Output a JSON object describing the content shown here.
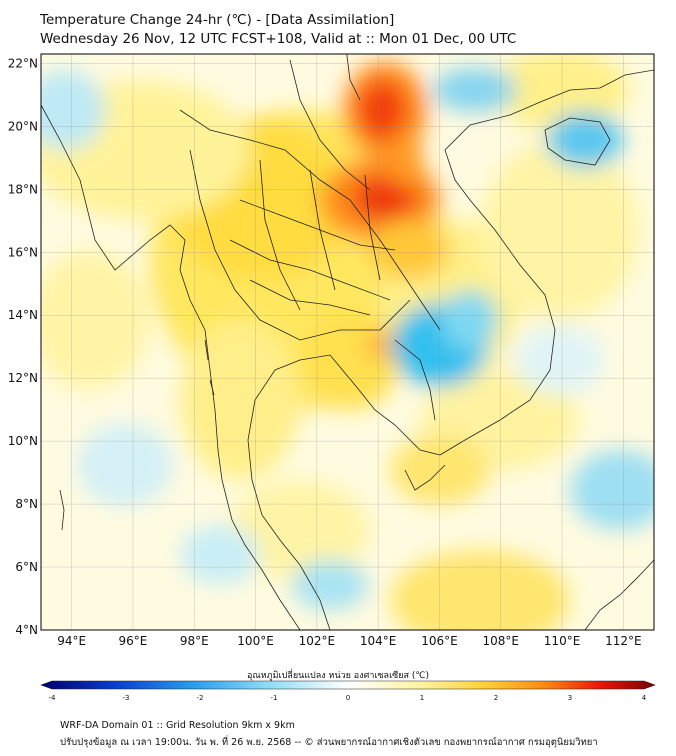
{
  "header": {
    "title_line1": "Temperature Change 24-hr (℃) - [Data Assimilation]",
    "title_line2": "Wednesday 26 Nov, 12 UTC FCST+108, Valid at :: Mon 01 Dec, 00 UTC"
  },
  "map": {
    "lat_labels": [
      "22°N",
      "20°N",
      "18°N",
      "16°N",
      "14°N",
      "12°N",
      "10°N",
      "8°N",
      "6°N",
      "4°N"
    ],
    "lon_labels": [
      "94°E",
      "96°E",
      "98°E",
      "100°E",
      "102°E",
      "104°E",
      "106°E",
      "108°E",
      "110°E",
      "112°E"
    ],
    "lat_values": [
      22,
      20,
      18,
      16,
      14,
      12,
      10,
      8,
      6,
      4
    ],
    "lon_values": [
      94,
      96,
      98,
      100,
      102,
      104,
      106,
      108,
      110,
      112
    ],
    "extent": {
      "lon_min": 93,
      "lon_max": 113,
      "lat_min": 4,
      "lat_max": 22.3
    }
  },
  "colorbar": {
    "title": "อุณหภูมิเปลี่ยนแปลง หน่วย องศาเซลเซียส (℃)",
    "ticks": [
      "-4",
      "-3",
      "-2",
      "-1",
      "0",
      "1",
      "2",
      "3",
      "4"
    ],
    "min": -4,
    "max": 4
  },
  "footer": {
    "line1": "WRF-DA Domain 01 :: Grid Resolution 9km x 9km",
    "line2": "ปรับปรุงข้อมูล ณ เวลา 19:00น. วัน พ. ที่ 26 พ.ย. 2568 -- © ส่วนพยากรณ์อากาศเชิงตัวเลข กองพยากรณ์อากาศ กรมอุตุนิยมวิทยา"
  }
}
